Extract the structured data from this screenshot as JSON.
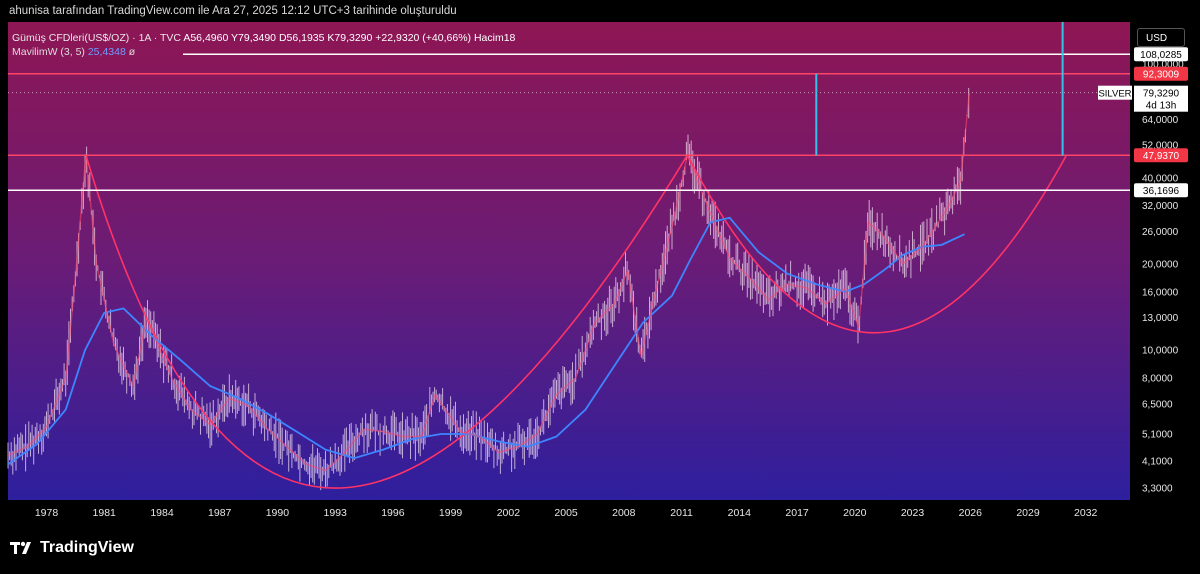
{
  "header": {
    "attribution": "ahunisa tarafından TradingView.com ile Ara 27, 2025 12:12 UTC+3 tarihinde oluşturuldu"
  },
  "legend": {
    "symbol": "Gümüş CFDleri(US$/OZ) · 1A · TVC",
    "open": "A56,4960",
    "high": "Y79,3490",
    "low": "D56,1935",
    "close": "K79,3290",
    "change": "+22,9320 (+40,66%)",
    "volume": "Hacim18",
    "ma_label": "MavilimW (3, 5)",
    "ma_value": "25,4348",
    "ma_symbol": "ø"
  },
  "toolbar": {
    "currency": "USD"
  },
  "brand": {
    "name": "TradingView"
  },
  "colors": {
    "bg_top": "#8e1654",
    "bg_mid": "#6a1c76",
    "bg_bottom": "#2e1f9e",
    "price_line": "#ff4466",
    "ma_line": "#3d86ff",
    "cup_line": "#ff3366",
    "h_line": "#ffffff",
    "v_line": "#33c3e8",
    "candles": "#f0dcee",
    "axis_text": "#e6e6e6"
  },
  "chart_data": {
    "type": "line",
    "title": "Gümüş CFDleri(US$/OZ) · 1A · TVC",
    "scale": "log",
    "ylim": [
      3.0,
      140
    ],
    "xlim": [
      1976.0,
      2034.3
    ],
    "x_ticks": [
      "1978",
      "1981",
      "1984",
      "1987",
      "1990",
      "1993",
      "1996",
      "1999",
      "2002",
      "2005",
      "2008",
      "2011",
      "2014",
      "2017",
      "2020",
      "2023",
      "2026",
      "2029",
      "2032"
    ],
    "y_ticks": [
      {
        "label": "100,0000",
        "value": 100
      },
      {
        "label": "64,0000",
        "value": 64
      },
      {
        "label": "52,0000",
        "value": 52
      },
      {
        "label": "40,0000",
        "value": 40
      },
      {
        "label": "32,0000",
        "value": 32
      },
      {
        "label": "26,0000",
        "value": 26
      },
      {
        "label": "20,0000",
        "value": 20
      },
      {
        "label": "16,0000",
        "value": 16
      },
      {
        "label": "13,0000",
        "value": 13
      },
      {
        "label": "10,0000",
        "value": 10
      },
      {
        "label": "8,0000",
        "value": 8
      },
      {
        "label": "6,5000",
        "value": 6.5
      },
      {
        "label": "5,1000",
        "value": 5.1
      },
      {
        "label": "4,1000",
        "value": 4.1
      },
      {
        "label": "3,3000",
        "value": 3.3
      }
    ],
    "grid": false,
    "price_series": {
      "name": "SILVER",
      "x": [
        1976.0,
        1977.0,
        1978.0,
        1979.0,
        1979.5,
        1980.05,
        1980.6,
        1981.5,
        1982.5,
        1983.2,
        1984.5,
        1985.5,
        1986.5,
        1987.5,
        1988.5,
        1989.5,
        1990.5,
        1991.5,
        1992.5,
        1993.5,
        1994.5,
        1995.5,
        1996.5,
        1997.5,
        1998.2,
        1999.5,
        2000.5,
        2001.5,
        2002.5,
        2003.5,
        2004.5,
        2005.5,
        2006.5,
        2007.5,
        2008.2,
        2008.9,
        2009.5,
        2010.5,
        2011.3,
        2012.5,
        2013.5,
        2014.5,
        2015.5,
        2016.5,
        2017.5,
        2018.5,
        2019.5,
        2020.2,
        2020.7,
        2021.5,
        2022.5,
        2023.5,
        2024.5,
        2025.0,
        2025.5,
        2025.95
      ],
      "y": [
        4.3,
        4.6,
        5.4,
        8.0,
        18.0,
        48.0,
        20.0,
        10.5,
        7.5,
        13.0,
        8.0,
        6.2,
        5.5,
        6.8,
        6.4,
        5.3,
        4.6,
        4.0,
        3.8,
        4.4,
        5.3,
        5.2,
        5.0,
        5.0,
        7.0,
        5.2,
        5.0,
        4.4,
        4.6,
        5.1,
        7.0,
        8.0,
        12.5,
        14.5,
        19.0,
        9.5,
        14.5,
        27.0,
        48.0,
        30.0,
        21.0,
        18.0,
        15.0,
        17.0,
        16.5,
        14.5,
        16.5,
        12.0,
        28.0,
        25.0,
        20.0,
        23.0,
        29.0,
        33.0,
        39.0,
        79.33
      ]
    },
    "ma_series": {
      "name": "MavilimW (3, 5)",
      "x": [
        1976.0,
        1977.5,
        1979.0,
        1980.0,
        1981.0,
        1982.0,
        1983.5,
        1985.0,
        1986.5,
        1988.0,
        1989.5,
        1991.0,
        1992.5,
        1994.0,
        1995.5,
        1997.0,
        1998.5,
        2000.0,
        2001.5,
        2003.0,
        2004.5,
        2006.0,
        2007.5,
        2009.0,
        2010.5,
        2011.5,
        2012.5,
        2013.5,
        2015.0,
        2016.5,
        2018.0,
        2019.5,
        2020.5,
        2021.5,
        2022.5,
        2023.5,
        2024.5,
        2025.7
      ],
      "y": [
        4.0,
        4.7,
        6.2,
        10.0,
        13.5,
        14.0,
        11.2,
        9.2,
        7.5,
        6.8,
        6.0,
        5.2,
        4.5,
        4.2,
        4.5,
        4.9,
        5.1,
        5.1,
        4.8,
        4.6,
        5.0,
        6.2,
        8.8,
        12.5,
        15.5,
        21.0,
        28.0,
        29.0,
        22.0,
        18.5,
        17.0,
        16.0,
        17.0,
        19.0,
        21.5,
        23.0,
        23.3,
        25.43
      ]
    },
    "price_line": {
      "label": "79,3290",
      "value": 79.329,
      "series": "SILVER",
      "countdown": "4d 13h"
    },
    "levels": [
      {
        "label": "108,0285",
        "value": 108.0285,
        "style": "white"
      },
      {
        "label": "92,3009",
        "value": 92.3009,
        "style": "red"
      },
      {
        "label": "47,9370",
        "value": 47.937,
        "style": "red"
      },
      {
        "label": "36,1696",
        "value": 36.1696,
        "style": "white"
      }
    ],
    "cups": [
      {
        "from": [
          1980.05,
          48.0
        ],
        "bottom": [
          1993.0,
          3.3
        ],
        "to": [
          2011.3,
          48.0
        ]
      },
      {
        "from": [
          2011.3,
          48.0
        ],
        "bottom": [
          2021.0,
          11.5
        ],
        "to": [
          2031.0,
          48.0
        ]
      }
    ],
    "vertical_markers": [
      {
        "x": 2018.0,
        "from": 47.9,
        "to": 92.3
      },
      {
        "x": 2030.8,
        "from": 47.9,
        "to": 140
      }
    ]
  }
}
